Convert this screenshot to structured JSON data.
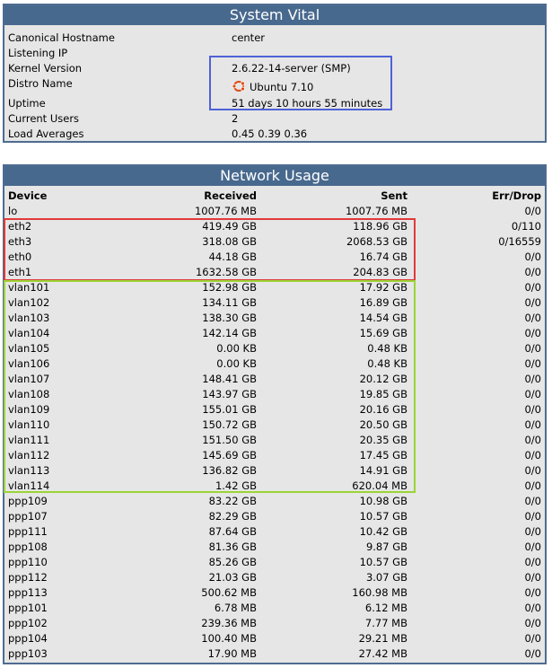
{
  "system_vital": {
    "title": "System Vital",
    "rows": [
      {
        "label": "Canonical Hostname",
        "value": "center"
      },
      {
        "label": "Listening IP",
        "value": ""
      },
      {
        "label": "Kernel Version",
        "value": "2.6.22-14-server (SMP)"
      },
      {
        "label": "Distro Name",
        "value": "Ubuntu 7.10",
        "icon": "ubuntu-logo-icon"
      },
      {
        "label": "Uptime",
        "value": "51 days 10 hours 55 minutes"
      },
      {
        "label": "Current Users",
        "value": "2"
      },
      {
        "label": "Load Averages",
        "value": "0.45 0.39 0.36"
      }
    ]
  },
  "network_usage": {
    "title": "Network Usage",
    "headers": {
      "device": "Device",
      "received": "Received",
      "sent": "Sent",
      "errdrop": "Err/Drop"
    },
    "rows": [
      {
        "device": "lo",
        "received": "1007.76 MB",
        "sent": "1007.76 MB",
        "errdrop": "0/0"
      },
      {
        "device": "eth2",
        "received": "419.49 GB",
        "sent": "118.96 GB",
        "errdrop": "0/110"
      },
      {
        "device": "eth3",
        "received": "318.08 GB",
        "sent": "2068.53 GB",
        "errdrop": "0/16559"
      },
      {
        "device": "eth0",
        "received": "44.18 GB",
        "sent": "16.74 GB",
        "errdrop": "0/0"
      },
      {
        "device": "eth1",
        "received": "1632.58 GB",
        "sent": "204.83 GB",
        "errdrop": "0/0"
      },
      {
        "device": "vlan101",
        "received": "152.98 GB",
        "sent": "17.92 GB",
        "errdrop": "0/0"
      },
      {
        "device": "vlan102",
        "received": "134.11 GB",
        "sent": "16.89 GB",
        "errdrop": "0/0"
      },
      {
        "device": "vlan103",
        "received": "138.30 GB",
        "sent": "14.54 GB",
        "errdrop": "0/0"
      },
      {
        "device": "vlan104",
        "received": "142.14 GB",
        "sent": "15.69 GB",
        "errdrop": "0/0"
      },
      {
        "device": "vlan105",
        "received": "0.00 KB",
        "sent": "0.48 KB",
        "errdrop": "0/0"
      },
      {
        "device": "vlan106",
        "received": "0.00 KB",
        "sent": "0.48 KB",
        "errdrop": "0/0"
      },
      {
        "device": "vlan107",
        "received": "148.41 GB",
        "sent": "20.12 GB",
        "errdrop": "0/0"
      },
      {
        "device": "vlan108",
        "received": "143.97 GB",
        "sent": "19.85 GB",
        "errdrop": "0/0"
      },
      {
        "device": "vlan109",
        "received": "155.01 GB",
        "sent": "20.16 GB",
        "errdrop": "0/0"
      },
      {
        "device": "vlan110",
        "received": "150.72 GB",
        "sent": "20.50 GB",
        "errdrop": "0/0"
      },
      {
        "device": "vlan111",
        "received": "151.50 GB",
        "sent": "20.35 GB",
        "errdrop": "0/0"
      },
      {
        "device": "vlan112",
        "received": "145.69 GB",
        "sent": "17.45 GB",
        "errdrop": "0/0"
      },
      {
        "device": "vlan113",
        "received": "136.82 GB",
        "sent": "14.91 GB",
        "errdrop": "0/0"
      },
      {
        "device": "vlan114",
        "received": "1.42 GB",
        "sent": "620.04 MB",
        "errdrop": "0/0"
      },
      {
        "device": "ppp109",
        "received": "83.22 GB",
        "sent": "10.98 GB",
        "errdrop": "0/0"
      },
      {
        "device": "ppp107",
        "received": "82.29 GB",
        "sent": "10.57 GB",
        "errdrop": "0/0"
      },
      {
        "device": "ppp111",
        "received": "87.64 GB",
        "sent": "10.42 GB",
        "errdrop": "0/0"
      },
      {
        "device": "ppp108",
        "received": "81.36 GB",
        "sent": "9.87 GB",
        "errdrop": "0/0"
      },
      {
        "device": "ppp110",
        "received": "85.26 GB",
        "sent": "10.57 GB",
        "errdrop": "0/0"
      },
      {
        "device": "ppp112",
        "received": "21.03 GB",
        "sent": "3.07 GB",
        "errdrop": "0/0"
      },
      {
        "device": "ppp113",
        "received": "500.62 MB",
        "sent": "160.98 MB",
        "errdrop": "0/0"
      },
      {
        "device": "ppp101",
        "received": "6.78 MB",
        "sent": "6.12 MB",
        "errdrop": "0/0"
      },
      {
        "device": "ppp102",
        "received": "239.36 MB",
        "sent": "7.77 MB",
        "errdrop": "0/0"
      },
      {
        "device": "ppp104",
        "received": "100.40 MB",
        "sent": "29.21 MB",
        "errdrop": "0/0"
      },
      {
        "device": "ppp103",
        "received": "17.90 MB",
        "sent": "27.42 MB",
        "errdrop": "0/0"
      }
    ]
  },
  "highlight_colors": {
    "kernel_box": "#4f62d6",
    "eth_box": "#e03a3a",
    "vlan_box": "#9cd435"
  }
}
